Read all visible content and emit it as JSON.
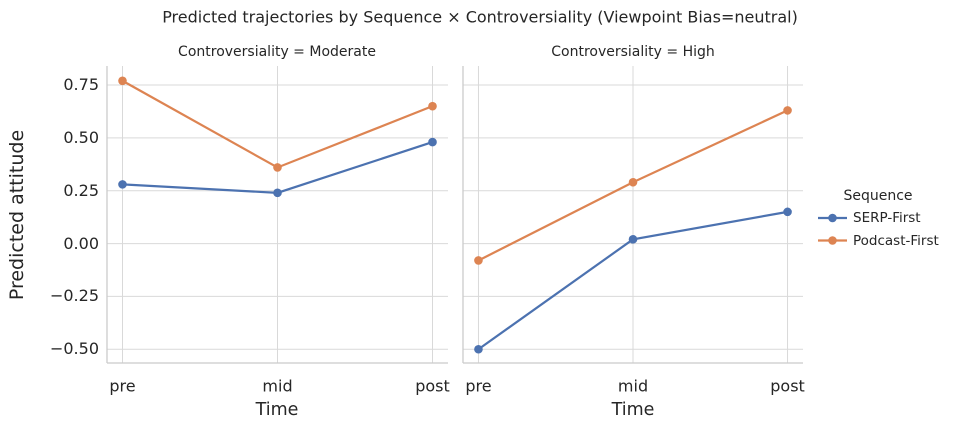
{
  "chart_data": {
    "type": "line",
    "title": "Predicted trajectories by Sequence × Controversiality (Viewpoint Bias=neutral)",
    "xlabel": "Time",
    "ylabel": "Predicted attitude",
    "categories": [
      "pre",
      "mid",
      "post"
    ],
    "ylim": [
      -0.565,
      0.84
    ],
    "yticks": [
      0.75,
      0.5,
      0.25,
      0,
      -0.25,
      -0.5
    ],
    "ytick_labels": [
      "0.75",
      "0.50",
      "0.25",
      "0.00",
      "−0.25",
      "−0.50"
    ],
    "grid": true,
    "legend": {
      "title": "Sequence",
      "position": "right-of-plot"
    },
    "facets": [
      {
        "title": "Controversiality = Moderate",
        "series": [
          {
            "name": "SERP-First",
            "color": "#4C72B0",
            "values": [
              0.28,
              0.24,
              0.48
            ]
          },
          {
            "name": "Podcast-First",
            "color": "#DD8452",
            "values": [
              0.77,
              0.36,
              0.65
            ]
          }
        ]
      },
      {
        "title": "Controversiality = High",
        "series": [
          {
            "name": "SERP-First",
            "color": "#4C72B0",
            "values": [
              -0.5,
              0.02,
              0.15
            ]
          },
          {
            "name": "Podcast-First",
            "color": "#DD8452",
            "values": [
              -0.08,
              0.29,
              0.63
            ]
          }
        ]
      }
    ]
  },
  "palette": {
    "serp_first": "#4C72B0",
    "podcast_first": "#DD8452",
    "grid": "#D9D9D9",
    "spine": "#CBCBCB",
    "text": "#262626"
  }
}
